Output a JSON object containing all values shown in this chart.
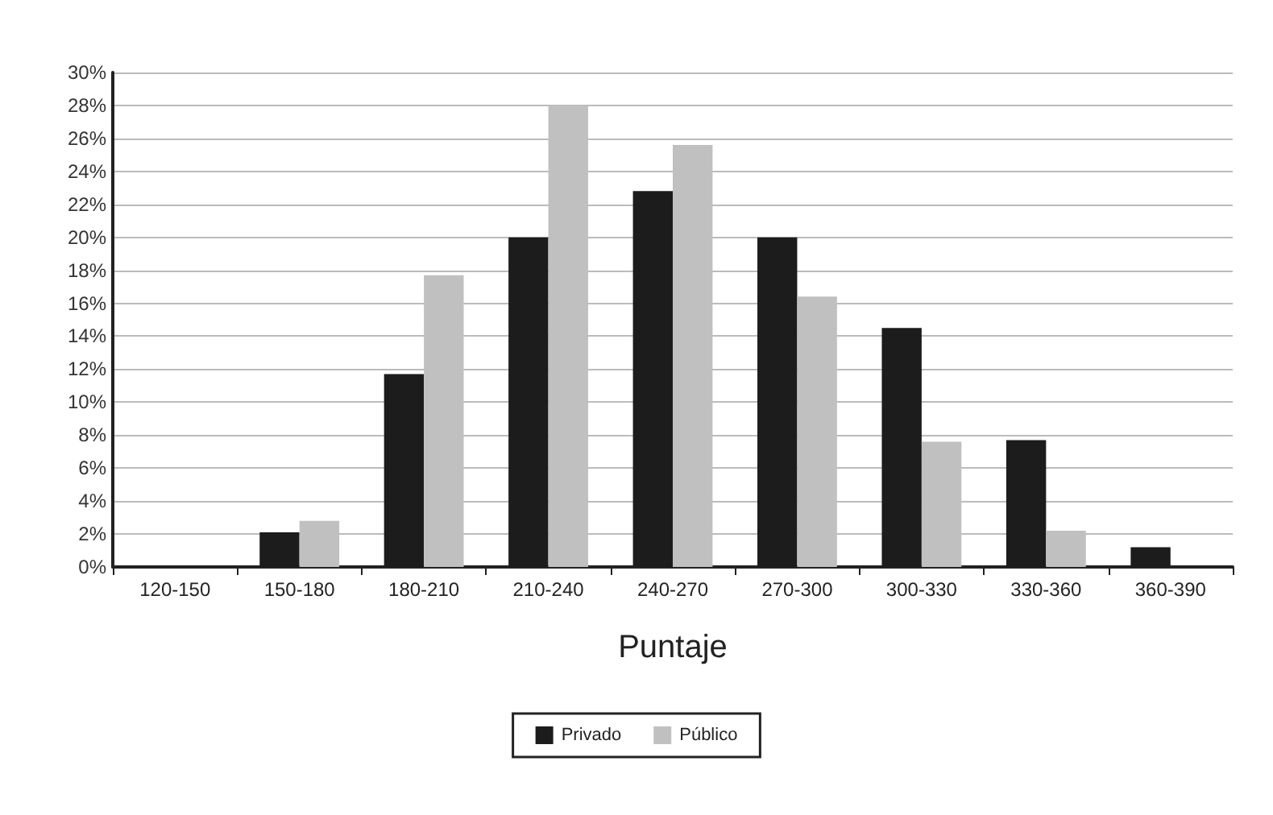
{
  "chart_data": {
    "type": "bar",
    "xlabel": "Puntaje",
    "categories": [
      "120-150",
      "150-180",
      "180-210",
      "210-240",
      "240-270",
      "270-300",
      "300-330",
      "330-360",
      "360-390"
    ],
    "series": [
      {
        "name": "Privado",
        "color": "#1c1c1c",
        "values": [
          0,
          2.1,
          11.7,
          20,
          22.8,
          20,
          14.5,
          7.7,
          1.2
        ]
      },
      {
        "name": "Público",
        "color": "#c0c0c0",
        "values": [
          0,
          2.8,
          17.7,
          28,
          25.6,
          16.4,
          7.6,
          2.2,
          0
        ]
      }
    ],
    "ylim": [
      0,
      30
    ],
    "yticks": [
      {
        "value": 0,
        "label": "0%"
      },
      {
        "value": 2,
        "label": "2%"
      },
      {
        "value": 4,
        "label": "4%"
      },
      {
        "value": 6,
        "label": "6%"
      },
      {
        "value": 8,
        "label": "8%"
      },
      {
        "value": 10,
        "label": "10%"
      },
      {
        "value": 12,
        "label": "12%"
      },
      {
        "value": 14,
        "label": "14%"
      },
      {
        "value": 16,
        "label": "16%"
      },
      {
        "value": 18,
        "label": "18%"
      },
      {
        "value": 20,
        "label": "20%"
      },
      {
        "value": 22,
        "label": "22%"
      },
      {
        "value": 24,
        "label": "24%"
      },
      {
        "value": 26,
        "label": "26%"
      },
      {
        "value": 28,
        "label": "28%"
      },
      {
        "value": 30,
        "label": "30%"
      }
    ],
    "grid": "y",
    "legend": "bottom"
  }
}
